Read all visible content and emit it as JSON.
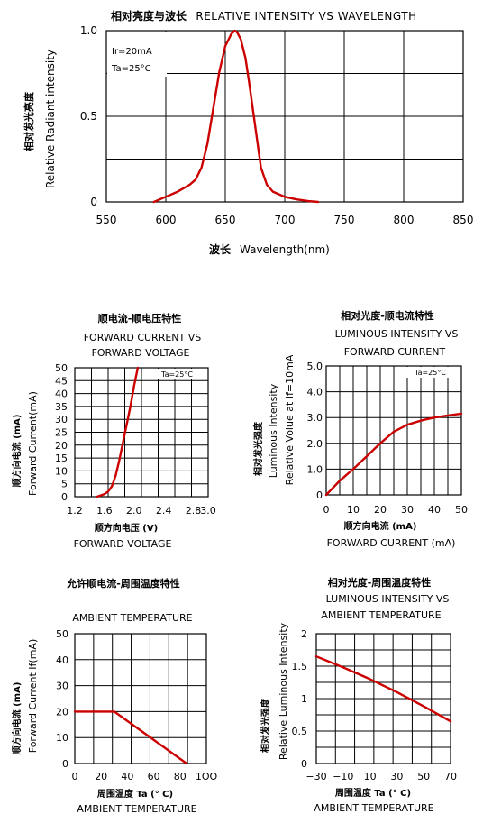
{
  "chart_data": [
    {
      "type": "line",
      "title_cn": "相对亮度与波长",
      "title": "RELATIVE INTENSITY VS WAVELENGTH",
      "xlabel_cn": "波长",
      "xlabel": "Wavelength(nm)",
      "ylabel_cn": "相对发光亮度",
      "ylabel": "Relative Radiant intensity",
      "xlim": [
        550,
        850
      ],
      "ylim": [
        0,
        1.0
      ],
      "x_ticks": [
        "550",
        "600",
        "650",
        "700",
        "750",
        "800",
        "850"
      ],
      "y_ticks": [
        "0",
        "0.5",
        "1.0"
      ],
      "conditions": [
        "Ir=20mA",
        "Ta=25°C"
      ],
      "grid": true,
      "x": [
        590,
        600,
        610,
        620,
        625,
        630,
        635,
        640,
        645,
        650,
        655,
        658,
        660,
        663,
        667,
        670,
        675,
        680,
        685,
        690,
        700,
        710,
        720,
        728
      ],
      "y": [
        0.0,
        0.03,
        0.06,
        0.1,
        0.13,
        0.2,
        0.34,
        0.55,
        0.76,
        0.91,
        0.98,
        1.0,
        0.99,
        0.95,
        0.84,
        0.7,
        0.45,
        0.2,
        0.1,
        0.06,
        0.03,
        0.015,
        0.005,
        0.0
      ]
    },
    {
      "type": "line",
      "title_cn": "顺电流-顺电压特性",
      "title_line1": "FORWARD CURRENT VS",
      "title_line2": "FORWARD VOLTAGE",
      "xlabel_cn": "顺方向电压 (V)",
      "xlabel": "FORWARD VOLTAGE",
      "ylabel_cn": "顺方向电流 (mA)",
      "ylabel": "Forward Current(mA)",
      "xlim": [
        1.2,
        3.0
      ],
      "ylim": [
        0,
        50
      ],
      "x_ticks": [
        "1.2",
        "1.6",
        "2.0",
        "2.4",
        "2.8",
        "3.0"
      ],
      "x_tick_values": [
        1.2,
        1.6,
        2.0,
        2.4,
        2.8,
        3.0
      ],
      "y_ticks": [
        "0",
        "5",
        "10",
        "15",
        "20",
        "25",
        "30",
        "35",
        "40",
        "45",
        "50"
      ],
      "conditions": [
        "Ta=25°C"
      ],
      "grid": true,
      "x": [
        1.5,
        1.6,
        1.65,
        1.7,
        1.75,
        1.8,
        1.85,
        1.9,
        1.95,
        2.0,
        2.05
      ],
      "y": [
        0,
        1,
        2,
        4,
        8,
        14,
        21,
        28,
        35,
        43,
        50
      ]
    },
    {
      "type": "line",
      "title_cn": "相对光度-顺电流特性",
      "title_line1": "LUMINOUS INTENSITY VS",
      "title_line2": "FORWARD CURRENT",
      "xlabel_cn": "顺方向电流 (mA)",
      "xlabel": "FORWARD CURRENT (mA)",
      "ylabel_cn": "相对发光强度",
      "ylabel_line1": "Luminous Intensity",
      "ylabel_line2": "Relative Volue at If=10mA",
      "xlim": [
        0,
        50
      ],
      "ylim": [
        0,
        5.0
      ],
      "x_ticks": [
        "0",
        "10",
        "20",
        "30",
        "40",
        "50"
      ],
      "y_ticks": [
        "0",
        "1.0",
        "2.0",
        "3.0",
        "4.0",
        "5.0"
      ],
      "conditions": [
        "Ta=25°C"
      ],
      "grid": true,
      "x": [
        0,
        5,
        10,
        15,
        20,
        25,
        30,
        35,
        40,
        45,
        50
      ],
      "y": [
        0,
        0.55,
        1.0,
        1.5,
        2.0,
        2.45,
        2.72,
        2.88,
        3.0,
        3.08,
        3.15
      ]
    },
    {
      "type": "line",
      "title_cn": "允许顺电流-周围温度特性",
      "title_line2": "AMBIENT TEMPERATURE",
      "xlabel_cn": "周围温度 Ta (° C)",
      "xlabel": "AMBIENT TEMPERATURE",
      "ylabel_cn": "顺方向电流 (mA)",
      "ylabel": "Forward Current If(mA)",
      "xlim": [
        0,
        100
      ],
      "ylim": [
        0,
        50
      ],
      "x_ticks": [
        "0",
        "20",
        "40",
        "60",
        "80",
        "1OO"
      ],
      "x_tick_values": [
        0,
        20,
        40,
        60,
        80,
        100
      ],
      "y_ticks": [
        "0",
        "10",
        "20",
        "30",
        "40",
        "50"
      ],
      "grid": true,
      "x": [
        0,
        30,
        85
      ],
      "y": [
        20,
        20,
        0
      ]
    },
    {
      "type": "line",
      "title_cn": "相对光度-周围温度特性",
      "title_line1": "LUMINOUS INTENSITY VS",
      "title_line2": "AMBIENT TEMPERATURE",
      "xlabel_cn": "周围温度 Ta (° C)",
      "xlabel": "AMBIENT TEMPERATURE",
      "ylabel_cn": "相对发光强度",
      "ylabel": "Relative Luminous Intensity",
      "xlim": [
        -30,
        70
      ],
      "ylim": [
        0,
        2
      ],
      "x_ticks": [
        "−30",
        "−10",
        "10",
        "30",
        "50",
        "70"
      ],
      "x_tick_values": [
        -30,
        -10,
        10,
        30,
        50,
        70
      ],
      "y_ticks": [
        "0",
        "0.5",
        "1",
        "1.5",
        "2"
      ],
      "y_tick_values": [
        0,
        0.5,
        1,
        1.5,
        2
      ],
      "grid": true,
      "x": [
        -30,
        -10,
        10,
        30,
        50,
        70
      ],
      "y": [
        1.65,
        1.48,
        1.3,
        1.1,
        0.88,
        0.65
      ]
    }
  ]
}
